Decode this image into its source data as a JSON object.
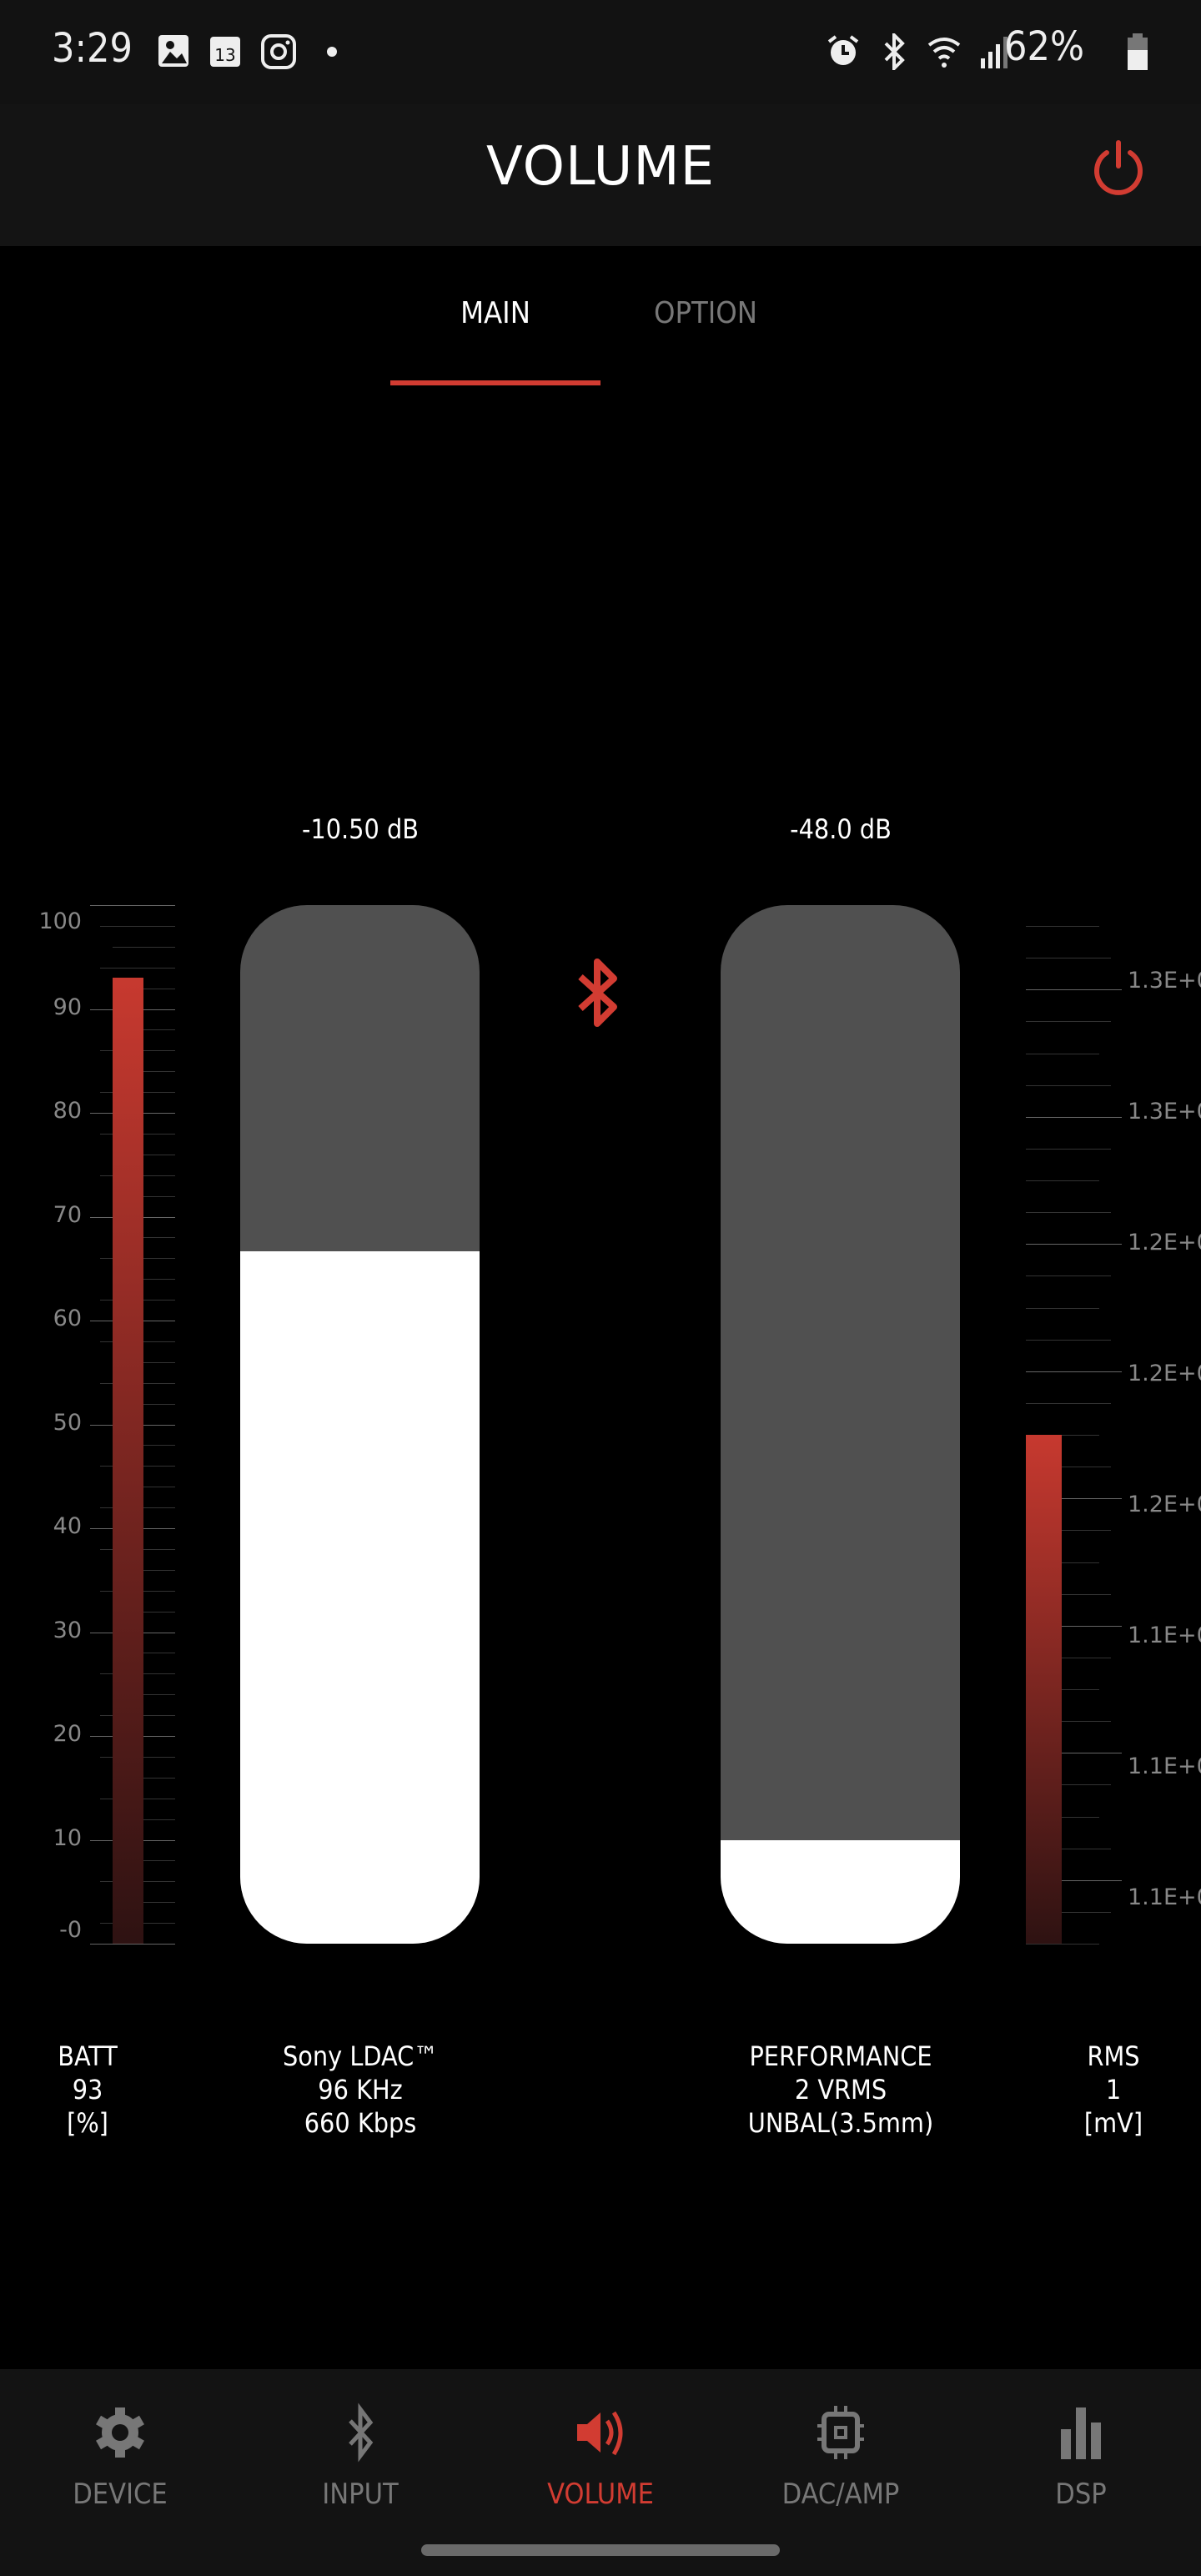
{
  "status_bar": {
    "time": "3:29",
    "calendar_day": "13",
    "battery": "62%",
    "icons": [
      "gallery-icon",
      "calendar-icon",
      "instagram-icon",
      "dot-icon",
      "alarm-icon",
      "bluetooth-icon",
      "wifi-6-icon",
      "signal-icon",
      "battery-icon"
    ]
  },
  "header": {
    "title": "VOLUME",
    "power_icon": "power-icon"
  },
  "tabs": [
    {
      "label": "MAIN",
      "active": true
    },
    {
      "label": "OPTION",
      "active": false
    }
  ],
  "accent_color": "#d23c32",
  "main": {
    "left_slider": {
      "label": "-10.50 dB",
      "level": 0.667
    },
    "right_slider": {
      "label": "-48.0 dB",
      "level": 0.1
    },
    "center_icon": "bluetooth-icon",
    "battery_meter": {
      "value": 93,
      "min": 0,
      "max": 100,
      "tick_labels": [
        "100",
        "90",
        "80",
        "70",
        "60",
        "50",
        "40",
        "30",
        "20",
        "10",
        "-0"
      ]
    },
    "rms_meter": {
      "level": 0.5,
      "tick_labels": [
        "1.3E+0",
        "1.3E+0",
        "1.2E+0",
        "1.2E+0",
        "1.2E+0",
        "1.1E+0",
        "1.1E+0",
        "1.1E+0"
      ]
    },
    "info": {
      "batt": [
        "BATT",
        "93",
        "[%]"
      ],
      "codec": [
        "Sony LDAC™",
        "96 KHz",
        "660 Kbps"
      ],
      "performance": [
        "PERFORMANCE",
        "2 VRMS",
        "UNBAL(3.5mm)"
      ],
      "rms": [
        "RMS",
        "1",
        "[mV]"
      ]
    }
  },
  "nav": [
    {
      "label": "DEVICE",
      "icon": "gear-icon"
    },
    {
      "label": "INPUT",
      "icon": "bluetooth-icon"
    },
    {
      "label": "VOLUME",
      "icon": "speaker-icon",
      "active": true
    },
    {
      "label": "DAC/AMP",
      "icon": "chip-icon"
    },
    {
      "label": "DSP",
      "icon": "bar-chart-icon"
    }
  ]
}
